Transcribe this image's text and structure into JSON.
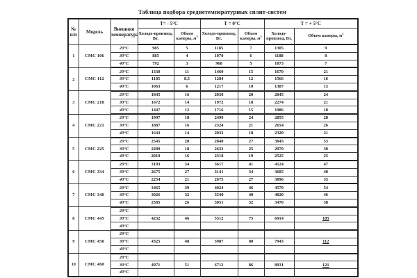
{
  "page": {
    "title": "Таблица подбора среднетемпературных сплит-систем"
  },
  "header": {
    "num": "№ п/п",
    "model": "Модель",
    "ext_temp": "Внешняя температура",
    "groups": [
      "Т= - 5°С",
      "Т = 0°С",
      "Т = + 5°С"
    ],
    "cold_label": "Холодо-производ, Вт.",
    "vol_label_text": "Объем камеры, м",
    "vol_label_sup": "3"
  },
  "models": [
    {
      "num": "1",
      "model": "СМС 106",
      "temps": [
        {
          "t": "20°С",
          "values": [
            "985",
            "5",
            "1185",
            "7",
            "1305",
            "9"
          ]
        },
        {
          "t": "30°С",
          "values": [
            "885",
            "4",
            "1070",
            "6",
            "1188",
            "8"
          ]
        },
        {
          "t": "40°С",
          "values": [
            "792",
            "3",
            "968",
            "5",
            "1073",
            "7"
          ]
        }
      ]
    },
    {
      "num": "2",
      "model": "СМС 112",
      "temps": [
        {
          "t": "20°С",
          "values": [
            "1330",
            "11",
            "1460",
            "15",
            "1670",
            "21"
          ]
        },
        {
          "t": "30°С",
          "values": [
            "1185",
            "8,5",
            "1284",
            "12",
            "1566",
            "16"
          ]
        },
        {
          "t": "40°С",
          "values": [
            "1063",
            "6",
            "1217",
            "10",
            "1387",
            "13"
          ]
        }
      ]
    },
    {
      "num": "3",
      "model": "СМС 218",
      "temps": [
        {
          "t": "20°С",
          "values": [
            "1845",
            "16",
            "2030",
            "20",
            "2045",
            "24"
          ]
        },
        {
          "t": "30°С",
          "values": [
            "1672",
            "14",
            "1972",
            "18",
            "2274",
            "21"
          ]
        },
        {
          "t": "40°С",
          "values": [
            "1447",
            "12",
            "1716",
            "15",
            "1986",
            "18"
          ]
        }
      ]
    },
    {
      "num": "4",
      "model": "СМС 221",
      "temps": [
        {
          "t": "20°С",
          "values": [
            "1997",
            "18",
            "2499",
            "24",
            "2855",
            "28"
          ]
        },
        {
          "t": "30°С",
          "values": [
            "1887",
            "16",
            "2324",
            "21",
            "2654",
            "26"
          ]
        },
        {
          "t": "40°С",
          "values": [
            "1643",
            "14",
            "2032",
            "18",
            "2320",
            "21"
          ]
        }
      ]
    },
    {
      "num": "5",
      "model": "СМС 225",
      "temps": [
        {
          "t": "20°С",
          "values": [
            "2545",
            "20",
            "2840",
            "27",
            "3045",
            "33"
          ]
        },
        {
          "t": "30°С",
          "values": [
            "2289",
            "18",
            "2633",
            "25",
            "2970",
            "30"
          ]
        },
        {
          "t": "40°С",
          "values": [
            "2010",
            "16",
            "2318",
            "19",
            "2525",
            "25"
          ]
        }
      ]
    },
    {
      "num": "6",
      "model": "СМС 334",
      "temps": [
        {
          "t": "20°С",
          "values": [
            "3103",
            "34",
            "3617",
            "41",
            "4124",
            "47"
          ]
        },
        {
          "t": "30°С",
          "values": [
            "2675",
            "27",
            "3141",
            "34",
            "3685",
            "40"
          ]
        },
        {
          "t": "40°С",
          "values": [
            "2254",
            "21",
            "2675",
            "27",
            "3096",
            "33"
          ]
        }
      ]
    },
    {
      "num": "7",
      "model": "СМС 340",
      "temps": [
        {
          "t": "20°С",
          "values": [
            "3465",
            "39",
            "4024",
            "46",
            "4570",
            "54"
          ]
        },
        {
          "t": "30°С",
          "values": [
            "3026",
            "32",
            "3540",
            "40",
            "4020",
            "46"
          ]
        },
        {
          "t": "40°С",
          "values": [
            "2585",
            "26",
            "3051",
            "32",
            "3470",
            "38"
          ]
        }
      ]
    },
    {
      "num": "8",
      "model": "СМС 445",
      "temps": [
        {
          "t": "20°С",
          "values": [
            "",
            "",
            "",
            "",
            "",
            ""
          ]
        },
        {
          "t": "30°С",
          "values": [
            "4232",
            "46",
            "5512",
            "75",
            "6914",
            "105"
          ],
          "underline_last": true
        },
        {
          "t": "40°С",
          "values": [
            "",
            "",
            "",
            "",
            "",
            ""
          ]
        }
      ]
    },
    {
      "num": "9",
      "model": "СМС 450",
      "temps": [
        {
          "t": "20°С",
          "values": [
            "",
            "",
            "",
            "",
            "",
            ""
          ]
        },
        {
          "t": "30°С",
          "values": [
            "4325",
            "48",
            "5987",
            "80",
            "7943",
            "112"
          ],
          "underline_last": true
        },
        {
          "t": "40°С",
          "values": [
            "",
            "",
            "",
            "",
            "",
            ""
          ]
        }
      ]
    },
    {
      "num": "10",
      "model": "СМС 460",
      "temps": [
        {
          "t": "20°С",
          "values": [
            "",
            "",
            "",
            "",
            "",
            ""
          ]
        },
        {
          "t": "30°С",
          "values": [
            "4971",
            "51",
            "6712",
            "86",
            "8931",
            "121"
          ],
          "underline_last": true
        },
        {
          "t": "40°С",
          "values": [
            "",
            "",
            "",
            "",
            "",
            ""
          ]
        }
      ]
    }
  ]
}
